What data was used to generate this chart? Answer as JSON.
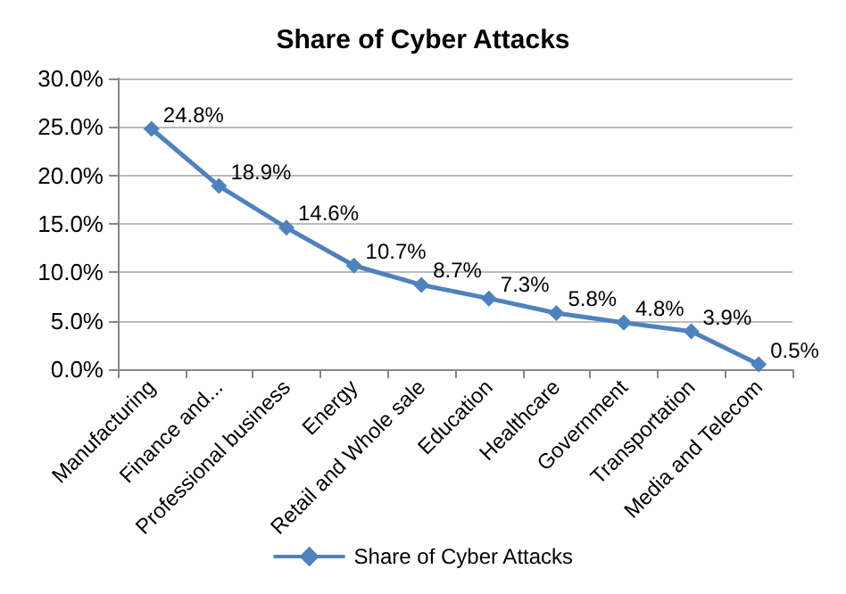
{
  "chart_data": {
    "type": "line",
    "title": "Share of Cyber Attacks",
    "categories": [
      "Manufacturing",
      "Finance and...",
      "Professional business",
      "Energy",
      "Retail and Whole sale",
      "Education",
      "Healthcare",
      "Government",
      "Transportation",
      "Media and Telecom"
    ],
    "series": [
      {
        "name": "Share of Cyber Attacks",
        "color": "#4f81bd",
        "values": [
          24.8,
          18.9,
          14.6,
          10.7,
          8.7,
          7.3,
          5.8,
          4.8,
          3.9,
          0.5
        ],
        "value_labels": [
          "24.8%",
          "18.9%",
          "14.6%",
          "10.7%",
          "8.7%",
          "7.3%",
          "5.8%",
          "4.8%",
          "3.9%",
          "0.5%"
        ]
      }
    ],
    "ylim": [
      0,
      30
    ],
    "yticks": [
      {
        "value": 0,
        "label": "0.0%"
      },
      {
        "value": 5,
        "label": "5.0%"
      },
      {
        "value": 10,
        "label": "10.0%"
      },
      {
        "value": 15,
        "label": "15.0%"
      },
      {
        "value": 20,
        "label": "20.0%"
      },
      {
        "value": 25,
        "label": "25.0%"
      },
      {
        "value": 30,
        "label": "30.0%"
      }
    ],
    "grid": "y",
    "legend": "bottom",
    "marker": "diamond",
    "line_style": "solid"
  }
}
